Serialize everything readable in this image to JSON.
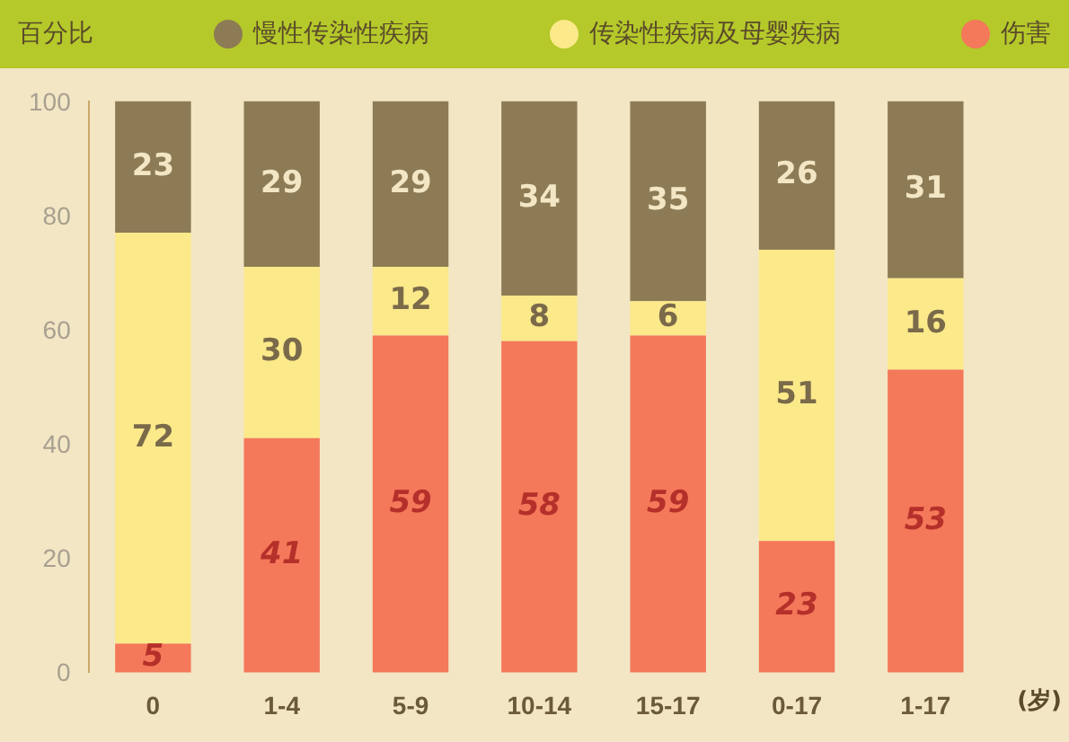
{
  "chart_data": {
    "type": "bar",
    "stacked": true,
    "ylabel": "百分比",
    "xlabel": "(岁)",
    "categories": [
      "0",
      "1-4",
      "5-9",
      "10-14",
      "15-17",
      "0-17",
      "1-17"
    ],
    "series": [
      {
        "name": "伤害",
        "color": "#f4785a",
        "values": [
          5,
          41,
          59,
          58,
          59,
          23,
          53
        ]
      },
      {
        "name": "传染性疾病及母婴疾病",
        "color": "#fbe98a",
        "values": [
          72,
          30,
          12,
          8,
          6,
          51,
          16
        ]
      },
      {
        "name": "慢性传染性疾病",
        "color": "#8c7b55",
        "values": [
          23,
          29,
          29,
          34,
          35,
          26,
          31
        ]
      }
    ],
    "ylim": [
      0,
      100
    ],
    "yticks": [
      0,
      20,
      40,
      60,
      80,
      100
    ],
    "grid": false,
    "legend": "top",
    "data_labels": true
  }
}
